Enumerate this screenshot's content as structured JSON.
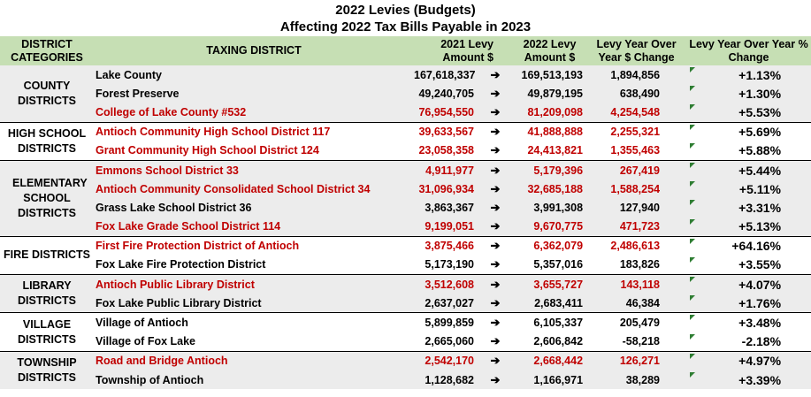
{
  "title_line1": "2022 Levies (Budgets)",
  "title_line2": "Affecting 2022 Tax Bills Payable in 2023",
  "headers": {
    "district_categories": "DISTRICT CATEGORIES",
    "taxing_district": "TAXING DISTRICT",
    "levy_2021": "2021 Levy Amount $",
    "levy_2022": "2022 Levy Amount $",
    "dollar_change": "Levy Year Over Year $ Change",
    "pct_change": "Levy Year Over Year % Change"
  },
  "arrow_symbol": "➔",
  "colors": {
    "header_bg": "#c6dfb4",
    "red_text": "#c00000",
    "shade": "#ececec",
    "marker": "#2e7d32"
  },
  "groups": [
    {
      "category": "COUNTY DISTRICTS",
      "shaded": true,
      "rows": [
        {
          "name": "Lake County",
          "levy_2021": "167,618,337",
          "levy_2022": "169,513,193",
          "change": "1,894,856",
          "pct": "+1.13%",
          "red": false
        },
        {
          "name": "Forest Preserve",
          "levy_2021": "49,240,705",
          "levy_2022": "49,879,195",
          "change": "638,490",
          "pct": "+1.30%",
          "red": false
        },
        {
          "name": "College of Lake County #532",
          "levy_2021": "76,954,550",
          "levy_2022": "81,209,098",
          "change": "4,254,548",
          "pct": "+5.53%",
          "red": true
        }
      ]
    },
    {
      "category": "HIGH SCHOOL DISTRICTS",
      "shaded": false,
      "rows": [
        {
          "name": "Antioch Community High School District 117",
          "levy_2021": "39,633,567",
          "levy_2022": "41,888,888",
          "change": "2,255,321",
          "pct": "+5.69%",
          "red": true
        },
        {
          "name": "Grant Community High School District 124",
          "levy_2021": "23,058,358",
          "levy_2022": "24,413,821",
          "change": "1,355,463",
          "pct": "+5.88%",
          "red": true
        }
      ]
    },
    {
      "category": "ELEMENTARY SCHOOL DISTRICTS",
      "shaded": true,
      "rows": [
        {
          "name": "Emmons School District 33",
          "levy_2021": "4,911,977",
          "levy_2022": "5,179,396",
          "change": "267,419",
          "pct": "+5.44%",
          "red": true
        },
        {
          "name": "Antioch Community Consolidated School District 34",
          "levy_2021": "31,096,934",
          "levy_2022": "32,685,188",
          "change": "1,588,254",
          "pct": "+5.11%",
          "red": true
        },
        {
          "name": "Grass Lake School District 36",
          "levy_2021": "3,863,367",
          "levy_2022": "3,991,308",
          "change": "127,940",
          "pct": "+3.31%",
          "red": false
        },
        {
          "name": "Fox Lake Grade School District 114",
          "levy_2021": "9,199,051",
          "levy_2022": "9,670,775",
          "change": "471,723",
          "pct": "+5.13%",
          "red": true
        }
      ]
    },
    {
      "category": "FIRE DISTRICTS",
      "shaded": false,
      "rows": [
        {
          "name": "First Fire Protection District of Antioch",
          "levy_2021": "3,875,466",
          "levy_2022": "6,362,079",
          "change": "2,486,613",
          "pct": "+64.16%",
          "red": true
        },
        {
          "name": "Fox Lake Fire Protection District",
          "levy_2021": "5,173,190",
          "levy_2022": "5,357,016",
          "change": "183,826",
          "pct": "+3.55%",
          "red": false
        }
      ]
    },
    {
      "category": "LIBRARY DISTRICTS",
      "shaded": true,
      "rows": [
        {
          "name": "Antioch Public Library District",
          "levy_2021": "3,512,608",
          "levy_2022": "3,655,727",
          "change": "143,118",
          "pct": "+4.07%",
          "red": true
        },
        {
          "name": "Fox Lake Public Library District",
          "levy_2021": "2,637,027",
          "levy_2022": "2,683,411",
          "change": "46,384",
          "pct": "+1.76%",
          "red": false
        }
      ]
    },
    {
      "category": "VILLAGE DISTRICTS",
      "shaded": false,
      "rows": [
        {
          "name": "Village of Antioch",
          "levy_2021": "5,899,859",
          "levy_2022": "6,105,337",
          "change": "205,479",
          "pct": "+3.48%",
          "red": false
        },
        {
          "name": "Village of Fox Lake",
          "levy_2021": "2,665,060",
          "levy_2022": "2,606,842",
          "change": "-58,218",
          "pct": "-2.18%",
          "red": false
        }
      ]
    },
    {
      "category": "TOWNSHIP DISTRICTS",
      "shaded": true,
      "rows": [
        {
          "name": "Road and Bridge Antioch",
          "levy_2021": "2,542,170",
          "levy_2022": "2,668,442",
          "change": "126,271",
          "pct": "+4.97%",
          "red": true
        },
        {
          "name": "Township of Antioch",
          "levy_2021": "1,128,682",
          "levy_2022": "1,166,971",
          "change": "38,289",
          "pct": "+3.39%",
          "red": false
        }
      ]
    }
  ]
}
